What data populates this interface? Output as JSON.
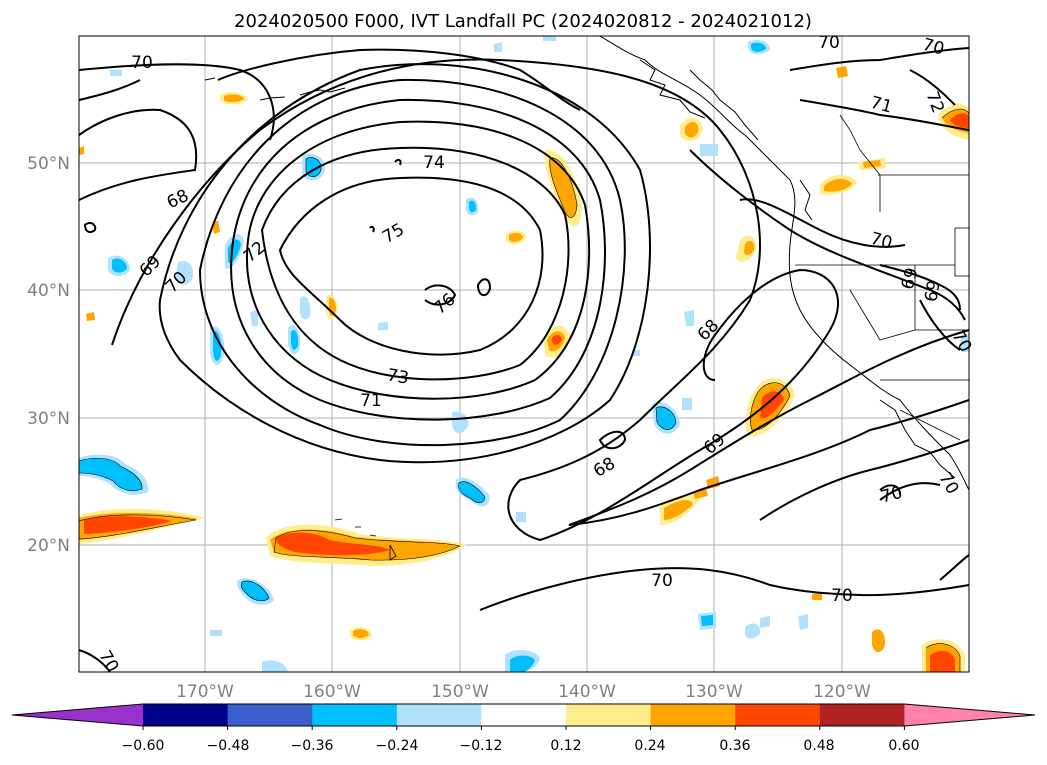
{
  "map": {
    "title": "2024020500 F000, IVT Landfall PC (2024020812 - 2024021012)",
    "lat_labels": [
      "50°N",
      "40°N",
      "30°N",
      "20°N"
    ],
    "lon_labels": [
      "170°W",
      "160°W",
      "150°W",
      "140°W",
      "130°W",
      "120°W"
    ],
    "contour_labels": [
      "70",
      "70",
      "70",
      "71",
      "72",
      "74",
      "75",
      "76",
      "73",
      "71",
      "72",
      "69",
      "70",
      "68",
      "68",
      "68",
      "69",
      "70",
      "70",
      "70",
      "70",
      "70",
      "69",
      "69",
      "70",
      "70"
    ],
    "colorbar": {
      "tick_labels": [
        "−0.60",
        "−0.48",
        "−0.36",
        "−0.24",
        "−0.12",
        "0.12",
        "0.24",
        "0.36",
        "0.48",
        "0.60"
      ],
      "colors": [
        "#9932cc",
        "#00008b",
        "#3a5fcd",
        "#00bfff",
        "#b0e2ff",
        "#ffffff",
        "#ffec8b",
        "#ffa500",
        "#ff4500",
        "#b22222",
        "#ff82ab"
      ]
    }
  }
}
